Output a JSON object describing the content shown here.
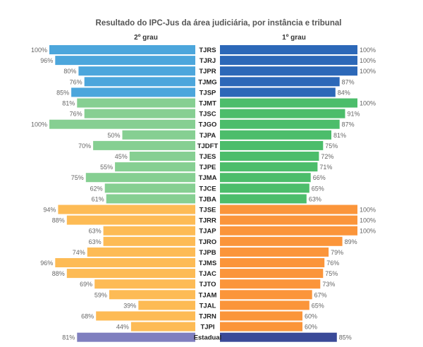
{
  "chart_data": {
    "type": "bar",
    "title": "Resultado do IPC-Jus da área judiciária, por instância e tribunal",
    "left_header": "2º grau",
    "right_header": "1º grau",
    "value_suffix": "%",
    "xlim": [
      0,
      100
    ],
    "categories": [
      "TJRS",
      "TJRJ",
      "TJPR",
      "TJMG",
      "TJSP",
      "TJMT",
      "TJSC",
      "TJGO",
      "TJPA",
      "TJDFT",
      "TJES",
      "TJPE",
      "TJMA",
      "TJCE",
      "TJBA",
      "TJSE",
      "TJRR",
      "TJAP",
      "TJRO",
      "TJPB",
      "TJMS",
      "TJAC",
      "TJTO",
      "TJAM",
      "TJAL",
      "TJRN",
      "TJPI",
      "Estadual"
    ],
    "groups": [
      "large",
      "large",
      "large",
      "large",
      "large",
      "medium",
      "medium",
      "medium",
      "medium",
      "medium",
      "medium",
      "medium",
      "medium",
      "medium",
      "medium",
      "small",
      "small",
      "small",
      "small",
      "small",
      "small",
      "small",
      "small",
      "small",
      "small",
      "small",
      "small",
      "total"
    ],
    "series": [
      {
        "side": "left",
        "values": [
          100,
          96,
          80,
          76,
          85,
          81,
          76,
          100,
          50,
          70,
          45,
          55,
          75,
          62,
          61,
          94,
          88,
          63,
          63,
          74,
          96,
          88,
          69,
          59,
          39,
          68,
          44,
          81
        ]
      },
      {
        "side": "right",
        "values": [
          100,
          100,
          100,
          87,
          84,
          100,
          91,
          87,
          81,
          75,
          72,
          71,
          66,
          65,
          63,
          100,
          100,
          100,
          89,
          79,
          76,
          75,
          73,
          67,
          65,
          60,
          60,
          85
        ]
      }
    ],
    "colors": {
      "large": {
        "left": "#4ca6dc",
        "right": "#2c68b8"
      },
      "medium": {
        "left": "#86cf92",
        "right": "#4cbd6b"
      },
      "small": {
        "left": "#fdbb55",
        "right": "#fb953a"
      },
      "total": {
        "left": "#7f7fbf",
        "right": "#3a4a98"
      }
    },
    "grid": false,
    "legend": "none"
  }
}
